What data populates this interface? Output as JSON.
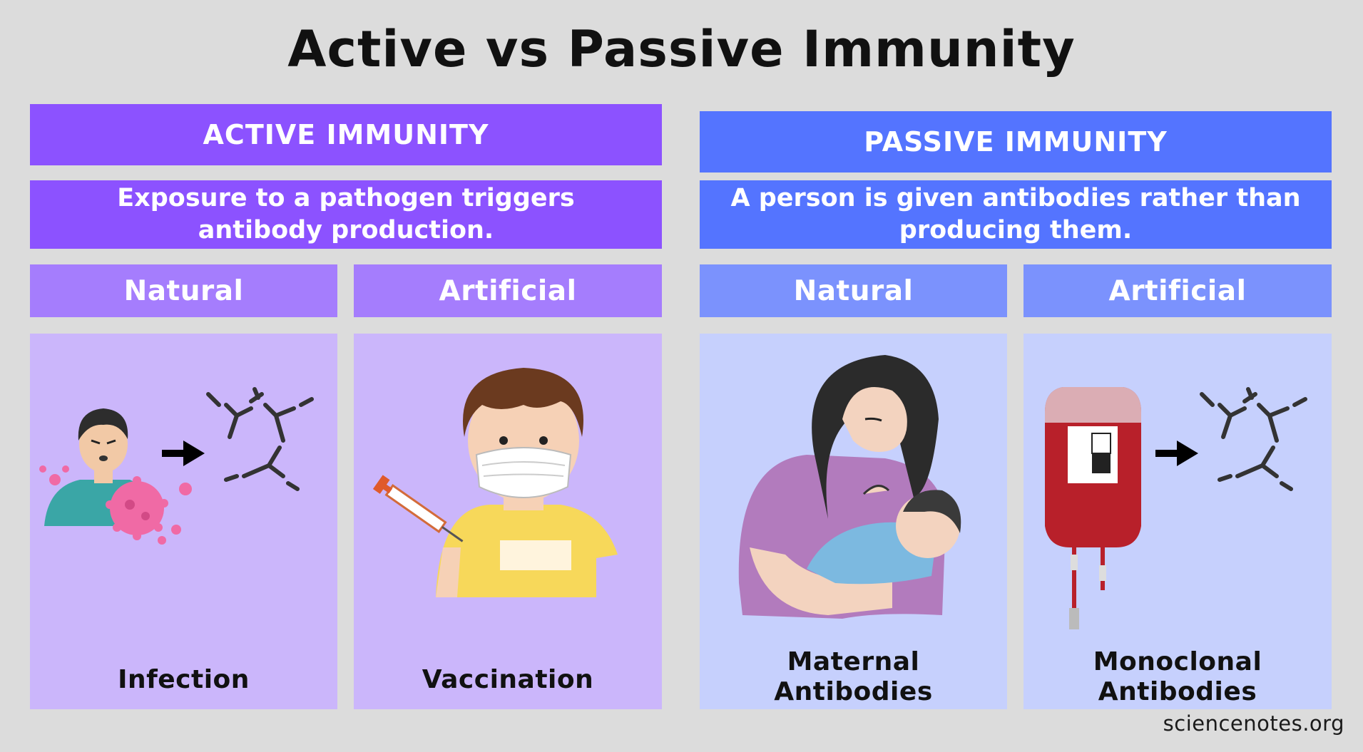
{
  "title": "Active vs Passive Immunity",
  "active": {
    "heading": "ACTIVE IMMUNITY",
    "description_line1": "Exposure to a pathogen triggers",
    "description_line2": "antibody production.",
    "natural": {
      "label": "Natural",
      "caption": "Infection"
    },
    "artificial": {
      "label": "Artificial",
      "caption": "Vaccination"
    }
  },
  "passive": {
    "heading": "PASSIVE IMMUNITY",
    "description_line1": "A person is given antibodies rather than",
    "description_line2": "producing them.",
    "natural": {
      "label": "Natural",
      "caption_line1": "Maternal",
      "caption_line2": "Antibodies"
    },
    "artificial": {
      "label": "Artificial",
      "caption_line1": "Monoclonal",
      "caption_line2": "Antibodies"
    }
  },
  "credit": "sciencenotes.org",
  "colors": {
    "background": "#dcdcdc",
    "active_main": "#8c52ff",
    "active_sub": "#a57dfd",
    "active_panel": "#cbb6fb",
    "passive_main": "#5474ff",
    "passive_sub": "#7b92fd",
    "passive_panel": "#c6d0fd"
  }
}
